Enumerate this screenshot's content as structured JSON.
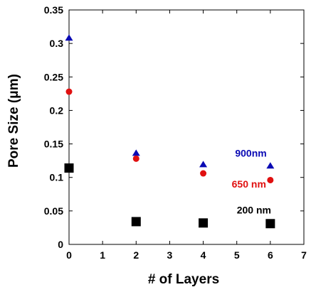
{
  "chart_data": {
    "type": "scatter",
    "title": "",
    "xlabel": "# of Layers",
    "ylabel": "Pore Size (μm)",
    "xlim": [
      0,
      7
    ],
    "ylim": [
      0,
      0.35
    ],
    "xticks": [
      0,
      1,
      2,
      3,
      4,
      5,
      6,
      7
    ],
    "yticks": [
      0,
      0.05,
      0.1,
      0.15,
      0.2,
      0.25,
      0.3,
      0.35
    ],
    "xtick_labels": [
      "0",
      "1",
      "2",
      "3",
      "4",
      "5",
      "6",
      "7"
    ],
    "ytick_labels": [
      "0",
      "0.05",
      "0.1",
      "0.15",
      "0.2",
      "0.25",
      "0.3",
      "0.35"
    ],
    "grid": false,
    "legend": "none",
    "series": [
      {
        "name": "900nm",
        "marker": "triangle",
        "color": "#0a0ab4",
        "x": [
          0,
          2,
          4,
          6
        ],
        "y": [
          0.308,
          0.136,
          0.119,
          0.117
        ]
      },
      {
        "name": "650 nm",
        "marker": "circle",
        "color": "#e01010",
        "x": [
          0,
          2,
          4,
          6
        ],
        "y": [
          0.228,
          0.128,
          0.106,
          0.096
        ]
      },
      {
        "name": "200 nm",
        "marker": "square",
        "color": "#000000",
        "x": [
          0,
          2,
          4,
          6
        ],
        "y": [
          0.114,
          0.034,
          0.032,
          0.031
        ]
      }
    ],
    "annotations": [
      {
        "text": "900nm",
        "color": "#0a0ab4",
        "x": 4.95,
        "y": 0.131
      },
      {
        "text": "650 nm",
        "color": "#e01010",
        "x": 4.85,
        "y": 0.085
      },
      {
        "text": "200 nm",
        "color": "#000000",
        "x": 5.0,
        "y": 0.046
      }
    ]
  }
}
